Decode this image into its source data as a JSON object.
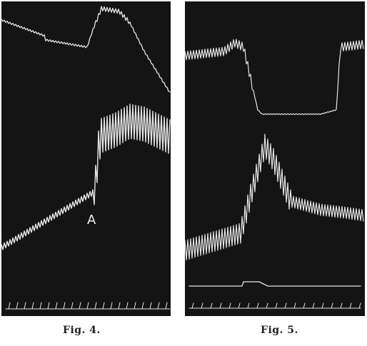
{
  "figures": [
    {
      "caption": "Fig. 4.",
      "marker_label": "A"
    },
    {
      "caption": "Fig. 5."
    }
  ]
}
